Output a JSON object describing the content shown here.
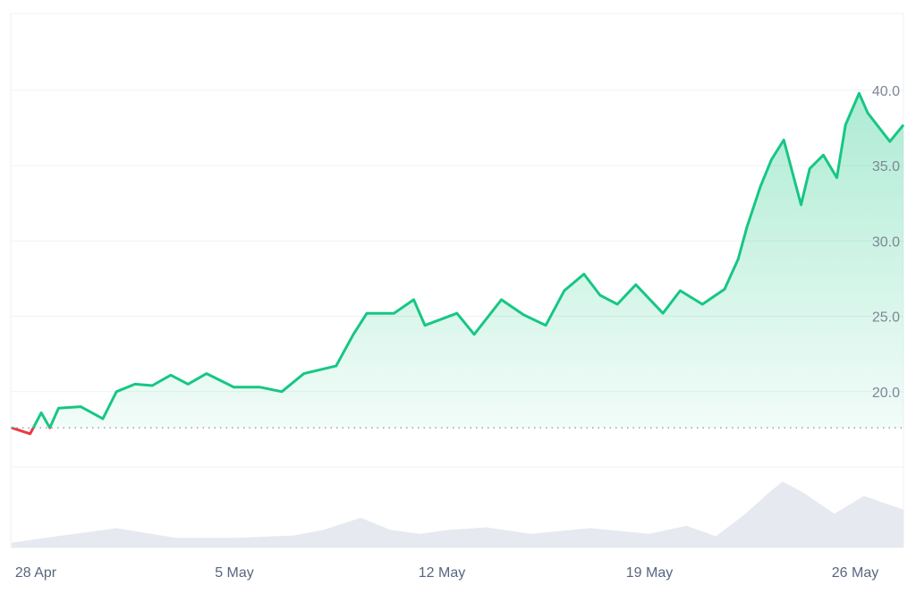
{
  "chart_data": {
    "type": "line",
    "title": "",
    "xlabel": "",
    "ylabel": "",
    "ylim": [
      15,
      45.1
    ],
    "yticks": [
      "20.0",
      "25.0",
      "30.0",
      "35.0",
      "40.0"
    ],
    "xticks": [
      "28 Apr",
      "5 May",
      "12 May",
      "19 May",
      "26 May"
    ],
    "grid": true,
    "baseline": 17.6,
    "colors": {
      "up": "#16c784",
      "down": "#ea3943",
      "volume": "#e6e9ef",
      "grid": "#eff2f5"
    },
    "series": [
      {
        "points": [
          [
            "Apr 27 11:00",
            17.6
          ],
          [
            "Apr 28 02:00",
            17.2
          ],
          [
            "Apr 28 11:00",
            18.6
          ],
          [
            "Apr 28 18:00",
            17.6
          ],
          [
            "Apr 29 01:00",
            18.9
          ],
          [
            "Apr 29 19:00",
            19.0
          ],
          [
            "Apr 30 13:00",
            18.2
          ],
          [
            "May 1 00:00",
            20.0
          ],
          [
            "May 1 15:00",
            20.5
          ],
          [
            "May 2 05:00",
            20.4
          ],
          [
            "May 2 20:00",
            21.1
          ],
          [
            "May 3 10:00",
            20.5
          ],
          [
            "May 4 01:00",
            21.2
          ],
          [
            "May 4 23:00",
            20.3
          ],
          [
            "May 5 20:00",
            20.3
          ],
          [
            "May 6 14:00",
            20.0
          ],
          [
            "May 7 08:00",
            21.2
          ],
          [
            "May 8 10:00",
            21.7
          ],
          [
            "May 9 00:00",
            23.8
          ],
          [
            "May 9 11:00",
            25.2
          ],
          [
            "May 10 09:00",
            25.2
          ],
          [
            "May 11 01:00",
            26.1
          ],
          [
            "May 11 10:00",
            24.4
          ],
          [
            "May 12 12:00",
            25.2
          ],
          [
            "May 13 02:00",
            23.8
          ],
          [
            "May 14 00:00",
            26.1
          ],
          [
            "May 14 18:00",
            25.1
          ],
          [
            "May 15 12:00",
            24.4
          ],
          [
            "May 16 03:00",
            26.7
          ],
          [
            "May 16 19:00",
            27.8
          ],
          [
            "May 17 08:00",
            26.4
          ],
          [
            "May 17 22:00",
            25.8
          ],
          [
            "May 18 13:00",
            27.1
          ],
          [
            "May 19 11:00",
            25.2
          ],
          [
            "May 20 01:00",
            26.7
          ],
          [
            "May 20 19:00",
            25.8
          ],
          [
            "May 21 13:00",
            26.8
          ],
          [
            "May 22 00:00",
            28.8
          ],
          [
            "May 22 07:00",
            30.9
          ],
          [
            "May 22 18:00",
            33.6
          ],
          [
            "May 23 03:00",
            35.4
          ],
          [
            "May 23 13:00",
            36.7
          ],
          [
            "May 24 03:00",
            32.4
          ],
          [
            "May 24 10:00",
            34.8
          ],
          [
            "May 24 21:00",
            35.7
          ],
          [
            "May 25 08:00",
            34.2
          ],
          [
            "May 25 15:00",
            37.7
          ],
          [
            "May 26 02:00",
            39.8
          ],
          [
            "May 26 09:00",
            38.5
          ],
          [
            "May 27 03:00",
            36.6
          ],
          [
            "May 27 14:00",
            37.7
          ]
        ]
      }
    ],
    "volume": {
      "points": [
        [
          "Apr 27 11:00",
          6
        ],
        [
          "Apr 29 00:00",
          14
        ],
        [
          "May 1 00:00",
          24
        ],
        [
          "May 3 00:00",
          12
        ],
        [
          "May 5 00:00",
          12
        ],
        [
          "May 7 00:00",
          15
        ],
        [
          "May 8 00:00",
          22
        ],
        [
          "May 9 06:00",
          37
        ],
        [
          "May 10 06:00",
          22
        ],
        [
          "May 11 06:00",
          17
        ],
        [
          "May 12 06:00",
          22
        ],
        [
          "May 13 12:00",
          25
        ],
        [
          "May 15 00:00",
          17
        ],
        [
          "May 17 00:00",
          24
        ],
        [
          "May 19 00:00",
          17
        ],
        [
          "May 20 06:00",
          27
        ],
        [
          "May 21 06:00",
          14
        ],
        [
          "May 22 06:00",
          42
        ],
        [
          "May 23 00:00",
          67
        ],
        [
          "May 23 12:00",
          82
        ],
        [
          "May 24 06:00",
          67
        ],
        [
          "May 25 06:00",
          42
        ],
        [
          "May 26 06:00",
          64
        ],
        [
          "May 27 14:00",
          47
        ]
      ]
    }
  }
}
